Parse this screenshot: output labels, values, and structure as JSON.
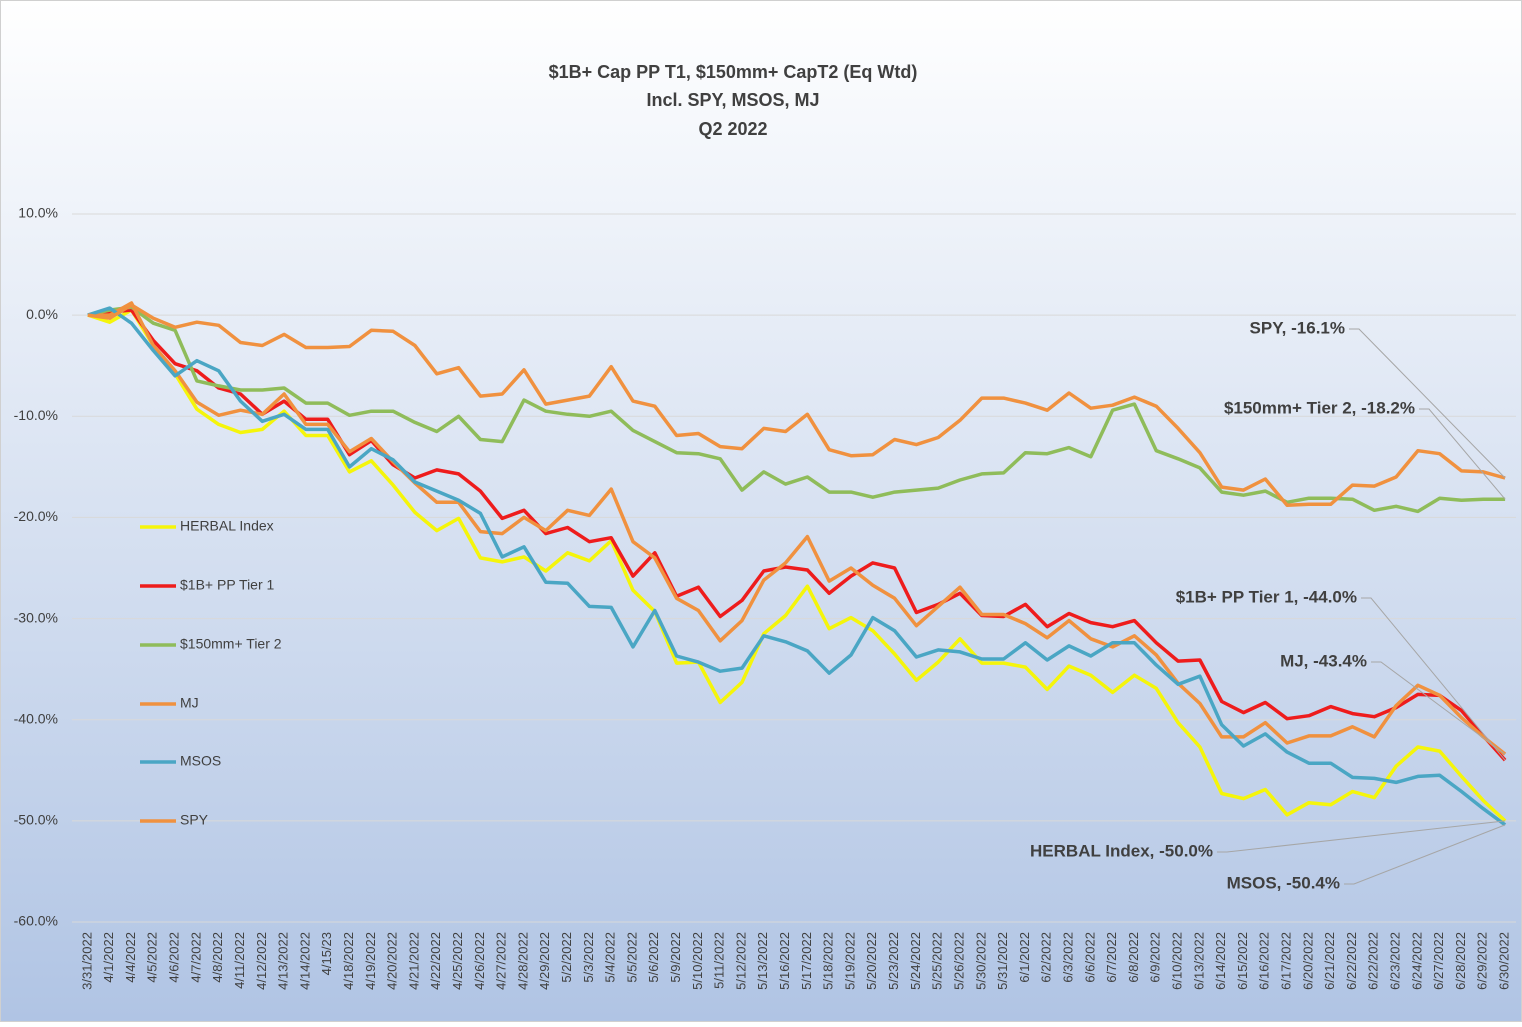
{
  "chart_data": {
    "type": "line",
    "title_lines": [
      "$1B+ Cap PP T1, $150mm+ CapT2  (Eq Wtd)",
      "Incl. SPY, MSOS, MJ",
      "Q2 2022"
    ],
    "categories": [
      "3/31/2022",
      "4/1/2022",
      "4/4/2022",
      "4/5/2022",
      "4/6/2022",
      "4/7/2022",
      "4/8/2022",
      "4/11/2022",
      "4/12/2022",
      "4/13/2022",
      "4/14/2022",
      "4/15/23",
      "4/18/2022",
      "4/19/2022",
      "4/20/2022",
      "4/21/2022",
      "4/22/2022",
      "4/25/2022",
      "4/26/2022",
      "4/27/2022",
      "4/28/2022",
      "4/29/2022",
      "5/2/2022",
      "5/3/2022",
      "5/4/2022",
      "5/5/2022",
      "5/6/2022",
      "5/9/2022",
      "5/10/2022",
      "5/11/2022",
      "5/12/2022",
      "5/13/2022",
      "5/16/2022",
      "5/17/2022",
      "5/18/2022",
      "5/19/2022",
      "5/20/2022",
      "5/23/2022",
      "5/24/2022",
      "5/25/2022",
      "5/26/2022",
      "5/30/2022",
      "5/31/2022",
      "6/1/2022",
      "6/2/2022",
      "6/3/2022",
      "6/6/2022",
      "6/7/2022",
      "6/8/2022",
      "6/9/2022",
      "6/10/2022",
      "6/13/2022",
      "6/14/2022",
      "6/15/2022",
      "6/16/2022",
      "6/17/2022",
      "6/20/2022",
      "6/21/2022",
      "6/22/2022",
      "6/22/2022",
      "6/23/2022",
      "6/24/2022",
      "6/27/2022",
      "6/28/2022",
      "6/29/2022",
      "6/30/2022"
    ],
    "series": [
      {
        "name": "HERBAL Index",
        "color": "#f5f50a",
        "values": [
          0,
          -0.7,
          0.5,
          -3.0,
          -5.8,
          -9.3,
          -10.8,
          -11.6,
          -11.3,
          -9.5,
          -11.9,
          -11.9,
          -15.5,
          -14.4,
          -16.8,
          -19.5,
          -21.3,
          -20.1,
          -24.0,
          -24.4,
          -23.9,
          -25.3,
          -23.5,
          -24.3,
          -22.3,
          -27.2,
          -29.3,
          -34.4,
          -34.3,
          -38.3,
          -36.3,
          -31.5,
          -29.7,
          -26.8,
          -31.0,
          -29.9,
          -31.2,
          -33.5,
          -36.1,
          -34.3,
          -32.0,
          -34.4,
          -34.4,
          -34.8,
          -37.0,
          -34.7,
          -35.6,
          -37.3,
          -35.6,
          -36.9,
          -40.3,
          -42.7,
          -47.3,
          -47.8,
          -46.9,
          -49.4,
          -48.2,
          -48.4,
          -47.1,
          -47.7,
          -44.6,
          -42.7,
          -43.1,
          -45.6,
          -48.0,
          -50.0
        ]
      },
      {
        "name": "$1B+ PP Tier 1",
        "color": "#ee1c1c",
        "values": [
          0,
          0.3,
          0.5,
          -2.5,
          -4.8,
          -5.5,
          -7.2,
          -7.8,
          -9.8,
          -8.5,
          -10.3,
          -10.3,
          -13.8,
          -12.4,
          -14.8,
          -16.1,
          -15.3,
          -15.7,
          -17.4,
          -20.1,
          -19.3,
          -21.6,
          -21.0,
          -22.4,
          -22.0,
          -25.8,
          -23.5,
          -27.8,
          -26.9,
          -29.8,
          -28.2,
          -25.3,
          -24.9,
          -25.2,
          -27.5,
          -25.8,
          -24.5,
          -25.0,
          -29.4,
          -28.6,
          -27.5,
          -29.7,
          -29.8,
          -28.6,
          -30.8,
          -29.5,
          -30.4,
          -30.8,
          -30.2,
          -32.4,
          -34.2,
          -34.1,
          -38.2,
          -39.3,
          -38.3,
          -39.9,
          -39.6,
          -38.7,
          -39.4,
          -39.7,
          -38.8,
          -37.5,
          -37.6,
          -39.1,
          -41.6,
          -44.0
        ]
      },
      {
        "name": "$150mm+ Tier 2",
        "color": "#8fbc5a",
        "values": [
          0,
          0.5,
          0.8,
          -0.8,
          -1.5,
          -6.5,
          -7.0,
          -7.4,
          -7.4,
          -7.2,
          -8.7,
          -8.7,
          -9.9,
          -9.5,
          -9.5,
          -10.6,
          -11.5,
          -10.0,
          -12.3,
          -12.5,
          -8.4,
          -9.5,
          -9.8,
          -10.0,
          -9.5,
          -11.4,
          -12.5,
          -13.6,
          -13.7,
          -14.2,
          -17.3,
          -15.5,
          -16.7,
          -16.0,
          -17.5,
          -17.5,
          -18.0,
          -17.5,
          -17.3,
          -17.1,
          -16.3,
          -15.7,
          -15.6,
          -13.6,
          -13.7,
          -13.1,
          -14.0,
          -9.4,
          -8.8,
          -13.4,
          -14.2,
          -15.1,
          -17.5,
          -17.8,
          -17.4,
          -18.5,
          -18.1,
          -18.1,
          -18.2,
          -19.3,
          -18.9,
          -19.4,
          -18.1,
          -18.3,
          -18.2,
          -18.2
        ]
      },
      {
        "name": "MJ",
        "color": "#f0913f",
        "values": [
          0,
          0,
          1.2,
          -3.0,
          -5.5,
          -8.6,
          -9.9,
          -9.4,
          -9.8,
          -7.8,
          -10.8,
          -10.8,
          -13.5,
          -12.2,
          -14.5,
          -16.6,
          -18.5,
          -18.5,
          -21.4,
          -21.6,
          -20.0,
          -21.3,
          -19.3,
          -19.8,
          -17.2,
          -22.4,
          -24.0,
          -28.0,
          -29.2,
          -32.2,
          -30.2,
          -26.2,
          -24.5,
          -21.9,
          -26.3,
          -25.0,
          -26.7,
          -28.0,
          -30.7,
          -28.8,
          -26.9,
          -29.6,
          -29.6,
          -30.5,
          -31.9,
          -30.2,
          -32.0,
          -32.8,
          -31.7,
          -33.6,
          -36.4,
          -38.4,
          -41.7,
          -41.7,
          -40.3,
          -42.3,
          -41.6,
          -41.6,
          -40.7,
          -41.7,
          -38.6,
          -36.6,
          -37.6,
          -39.8,
          -41.7,
          -43.4
        ]
      },
      {
        "name": "MSOS",
        "color": "#4aa6c4",
        "values": [
          0,
          0.7,
          -0.8,
          -3.5,
          -6.0,
          -4.5,
          -5.5,
          -8.5,
          -10.5,
          -9.8,
          -11.3,
          -11.3,
          -15.0,
          -13.2,
          -14.3,
          -16.5,
          -17.4,
          -18.3,
          -19.6,
          -23.9,
          -22.9,
          -26.4,
          -26.5,
          -28.8,
          -28.9,
          -32.8,
          -29.2,
          -33.7,
          -34.3,
          -35.2,
          -34.9,
          -31.7,
          -32.3,
          -33.2,
          -35.4,
          -33.6,
          -29.9,
          -31.2,
          -33.8,
          -33.1,
          -33.3,
          -34.0,
          -34.0,
          -32.4,
          -34.1,
          -32.7,
          -33.7,
          -32.4,
          -32.4,
          -34.6,
          -36.5,
          -35.7,
          -40.5,
          -42.6,
          -41.4,
          -43.2,
          -44.3,
          -44.3,
          -45.7,
          -45.8,
          -46.2,
          -45.6,
          -45.5,
          -47.1,
          -48.8,
          -50.4
        ]
      },
      {
        "name": "SPY",
        "color": "#f0913f",
        "values": [
          0,
          -0.3,
          1.0,
          -0.3,
          -1.2,
          -0.7,
          -1.0,
          -2.7,
          -3.0,
          -1.9,
          -3.2,
          -3.2,
          -3.1,
          -1.5,
          -1.6,
          -3.0,
          -5.8,
          -5.2,
          -8.0,
          -7.8,
          -5.4,
          -8.8,
          -8.4,
          -8.0,
          -5.1,
          -8.5,
          -9.0,
          -11.9,
          -11.7,
          -13.0,
          -13.2,
          -11.2,
          -11.5,
          -9.8,
          -13.3,
          -13.9,
          -13.8,
          -12.3,
          -12.8,
          -12.1,
          -10.4,
          -8.2,
          -8.2,
          -8.7,
          -9.4,
          -7.7,
          -9.2,
          -8.9,
          -8.1,
          -9.0,
          -11.2,
          -13.6,
          -17.0,
          -17.3,
          -16.2,
          -18.8,
          -18.7,
          -18.7,
          -16.8,
          -16.9,
          -16.0,
          -13.4,
          -13.7,
          -15.4,
          -15.5,
          -16.1
        ]
      }
    ],
    "ylim": [
      -60,
      10
    ],
    "yticks": [
      {
        "value": -60,
        "label": "-60.0%"
      },
      {
        "value": -50,
        "label": "-50.0%"
      },
      {
        "value": -40,
        "label": "-40.0%"
      },
      {
        "value": -30,
        "label": "-30.0%"
      },
      {
        "value": -20,
        "label": "-20.0%"
      },
      {
        "value": -10,
        "label": "-10.0%"
      },
      {
        "value": 0,
        "label": "0.0%"
      },
      {
        "value": 10,
        "label": "10.0%"
      }
    ],
    "grid": true,
    "legend": "left",
    "annotations": [
      "SPY, -16.1%",
      "$150mm+ Tier 2, -18.2%",
      "$1B+ PP Tier 1, -44.0%",
      "MJ, -43.4%",
      "HERBAL Index, -50.0%",
      "MSOS, -50.4%"
    ]
  }
}
